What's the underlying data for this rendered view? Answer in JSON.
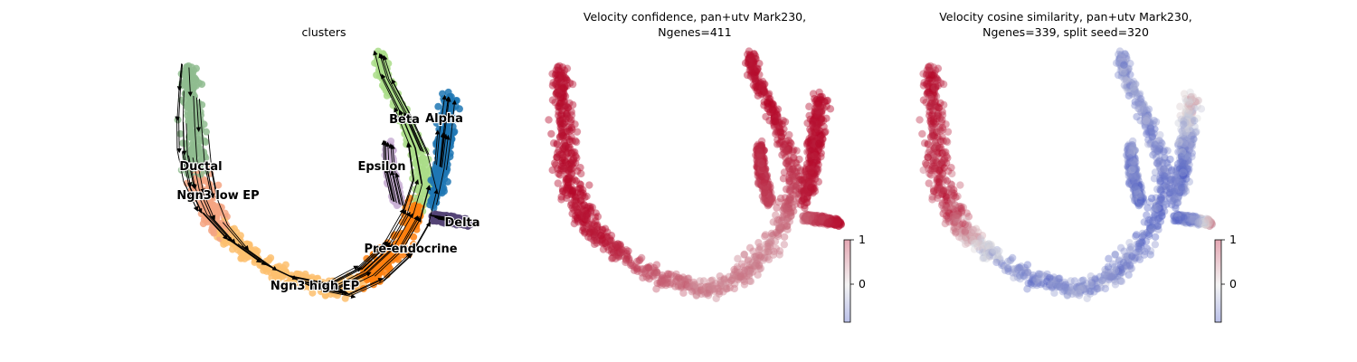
{
  "colors": {
    "Ductal": "#8fbc8f",
    "Ngn3 low EP": "#f4a582",
    "Ngn3 high EP": "#fdbf6f",
    "Pre-endocrine": "#ff7f0e",
    "Beta": "#aadd88",
    "Alpha": "#1f77b4",
    "Delta": "#554477",
    "Epsilon": "#cab2d6",
    "cmap_low": "#3b4cc0",
    "cmap_mid": "#dddddd",
    "cmap_high": "#b40426",
    "arrow": "#000000"
  },
  "chart_data": [
    {
      "type": "scatter",
      "title": "clusters",
      "overlay": "velocity streamlines",
      "categories": [
        "Ductal",
        "Ngn3 low EP",
        "Ngn3 high EP",
        "Pre-endocrine",
        "Beta",
        "Alpha",
        "Delta",
        "Epsilon"
      ],
      "labels": [
        {
          "text": "Ductal"
        },
        {
          "text": "Ngn3 low EP"
        },
        {
          "text": "Ngn3 high EP"
        },
        {
          "text": "Pre-endocrine"
        },
        {
          "text": "Beta"
        },
        {
          "text": "Alpha"
        },
        {
          "text": "Delta"
        },
        {
          "text": "Epsilon"
        }
      ],
      "axes": "off",
      "legend": "on data"
    },
    {
      "type": "scatter",
      "title_line1": "Velocity confidence, pan+utv Mark230,",
      "title_line2": "Ngenes=411",
      "colorbar": {
        "ticks": [
          "1",
          "0"
        ],
        "range": [
          -0.8,
          1
        ]
      },
      "colormap": "coolwarm",
      "axes": "off"
    },
    {
      "type": "scatter",
      "title_line1": "Velocity cosine similarity, pan+utv Mark230,",
      "title_line2": "Ngenes=339, split seed=320",
      "colorbar": {
        "ticks": [
          "1",
          "0"
        ],
        "range": [
          -0.8,
          1
        ]
      },
      "colormap": "coolwarm",
      "axes": "off"
    }
  ]
}
